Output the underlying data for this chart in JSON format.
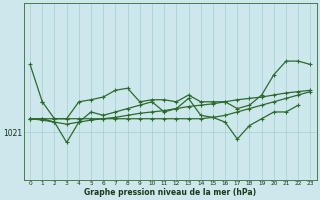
{
  "xlabel": "Graphe pression niveau de la mer (hPa)",
  "bg_color": "#cce8ec",
  "line_color": "#2d6a2d",
  "grid_color": "#aacccc",
  "ytick_label": "1021",
  "ytick_value": 1021,
  "ymin": 1014,
  "ymax": 1040,
  "series": [
    [
      1031.0,
      1025.5,
      null,
      null,
      null,
      null,
      null,
      null,
      null,
      null,
      null,
      null,
      null,
      null,
      null,
      null,
      null,
      null,
      null,
      null,
      null,
      null,
      null,
      null
    ],
    [
      null,
      1025.5,
      1023.0,
      1023.0,
      1025.5,
      1025.8,
      1026.2,
      1027.2,
      1027.5,
      1025.5,
      1025.8,
      1025.8,
      1025.5,
      1026.5,
      1025.5,
      1025.5,
      1025.5,
      1024.5,
      1025.0,
      1026.5,
      1029.5,
      1031.5,
      1031.5,
      1031.0
    ],
    [
      1023.0,
      1023.0,
      1023.0,
      1023.0,
      1023.0,
      1023.0,
      1023.0,
      1023.0,
      1023.0,
      1023.0,
      1023.0,
      1023.0,
      1023.0,
      1023.0,
      1023.0,
      1023.2,
      1023.5,
      1024.0,
      1024.5,
      1025.0,
      1025.5,
      1026.0,
      1026.5,
      1027.0
    ],
    [
      1023.0,
      1023.0,
      1022.5,
      1019.5,
      1022.5,
      1024.0,
      1023.5,
      1024.0,
      1024.5,
      1025.0,
      1025.5,
      1024.0,
      1024.5,
      1026.0,
      1023.5,
      1023.2,
      1022.5,
      1020.0,
      1022.0,
      1023.0,
      1024.0,
      1024.0,
      1025.0,
      null
    ],
    [
      1023.0,
      1022.8,
      1022.5,
      1022.2,
      1022.5,
      1022.8,
      1023.0,
      1023.2,
      1023.5,
      1023.8,
      1024.0,
      1024.2,
      1024.5,
      1024.8,
      1025.0,
      1025.2,
      1025.5,
      1025.8,
      1026.0,
      1026.2,
      1026.5,
      1026.8,
      1027.0,
      1027.2
    ]
  ]
}
